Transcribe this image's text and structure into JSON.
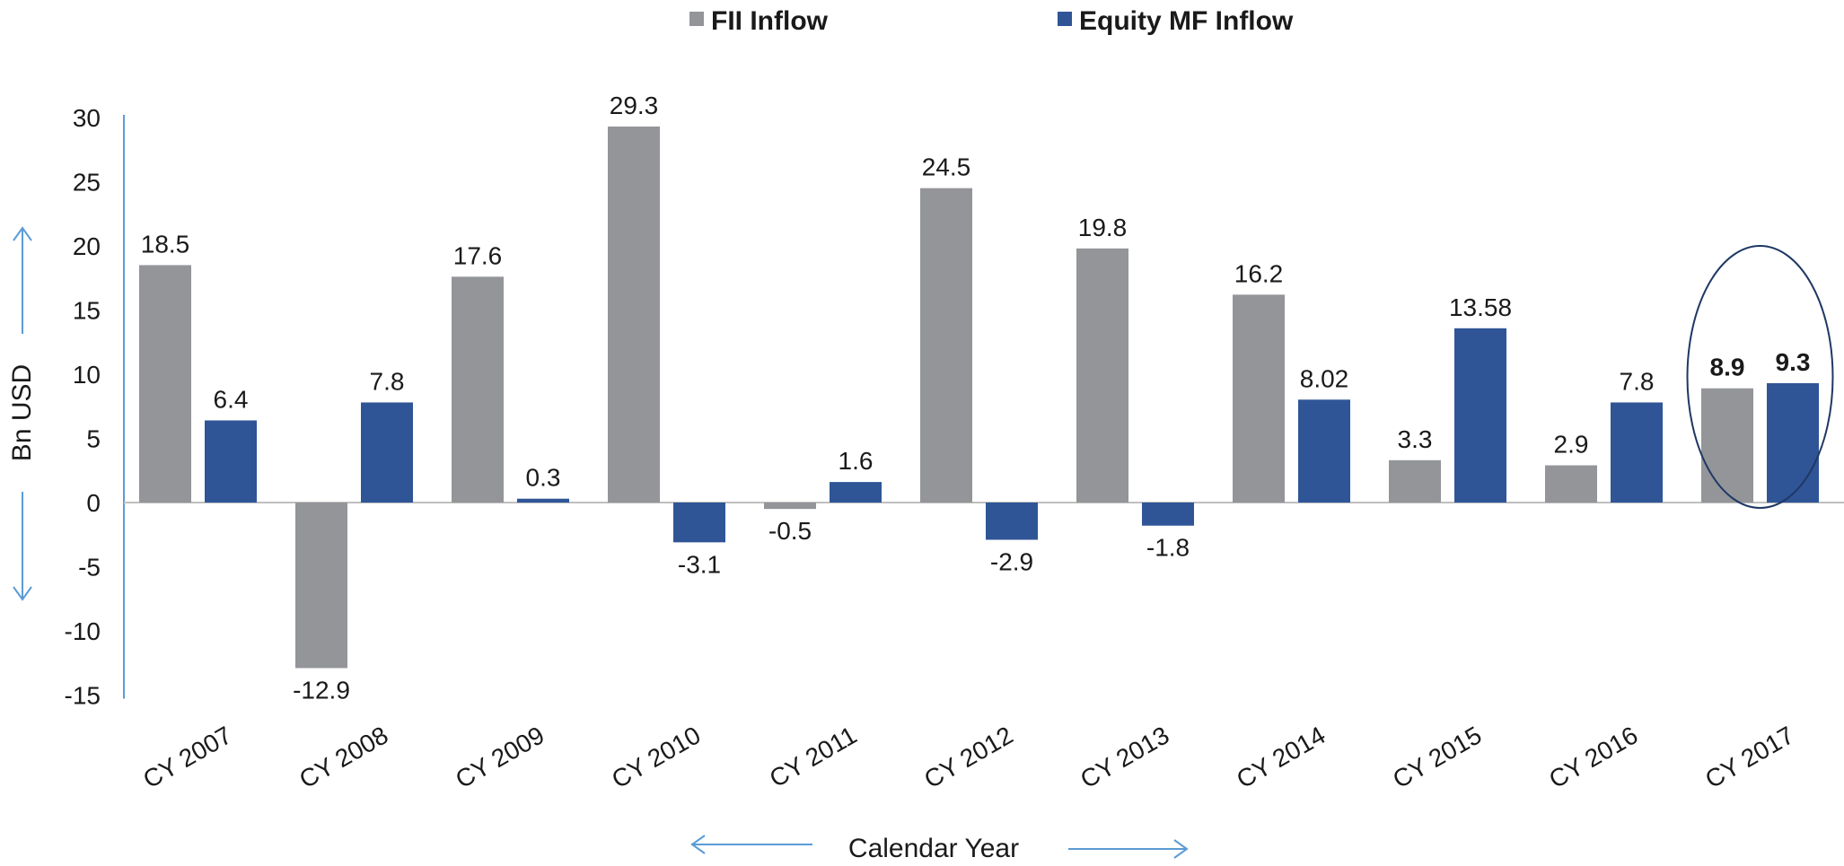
{
  "chart_data": {
    "type": "bar",
    "categories": [
      "CY 2007",
      "CY 2008",
      "CY 2009",
      "CY 2010",
      "CY 2011",
      "CY 2012",
      "CY 2013",
      "CY 2014",
      "CY 2015",
      "CY 2016",
      "CY 2017"
    ],
    "series": [
      {
        "name": "FII Inflow",
        "color": "#949599",
        "values": [
          18.5,
          -12.9,
          17.6,
          29.3,
          -0.5,
          24.5,
          19.8,
          16.2,
          3.3,
          2.9,
          8.9
        ],
        "labels": [
          "18.5",
          "-12.9",
          "17.6",
          "29.3",
          "-0.5",
          "24.5",
          "19.8",
          "16.2",
          "3.3",
          "2.9",
          "8.9"
        ]
      },
      {
        "name": "Equity MF Inflow",
        "color": "#2F5597",
        "values": [
          6.4,
          7.8,
          0.3,
          -3.1,
          1.6,
          -2.9,
          -1.8,
          8.02,
          13.58,
          7.8,
          9.3
        ],
        "labels": [
          "6.4",
          "7.8",
          "0.3",
          "-3.1",
          "1.6",
          "-2.9",
          "-1.8",
          "8.02",
          "13.58",
          "7.8",
          "9.3"
        ]
      }
    ],
    "ylabel": "Bn USD",
    "xlabel": "Calendar Year",
    "ylim": [
      -15,
      30
    ],
    "yticks": [
      30,
      25,
      20,
      15,
      10,
      5,
      0,
      -5,
      -10,
      -15
    ],
    "grid": false,
    "legend_position": "top-center",
    "highlight_category": "CY 2017",
    "axis_color": "#5B9BD5",
    "highlight_color": "#1F3864"
  }
}
